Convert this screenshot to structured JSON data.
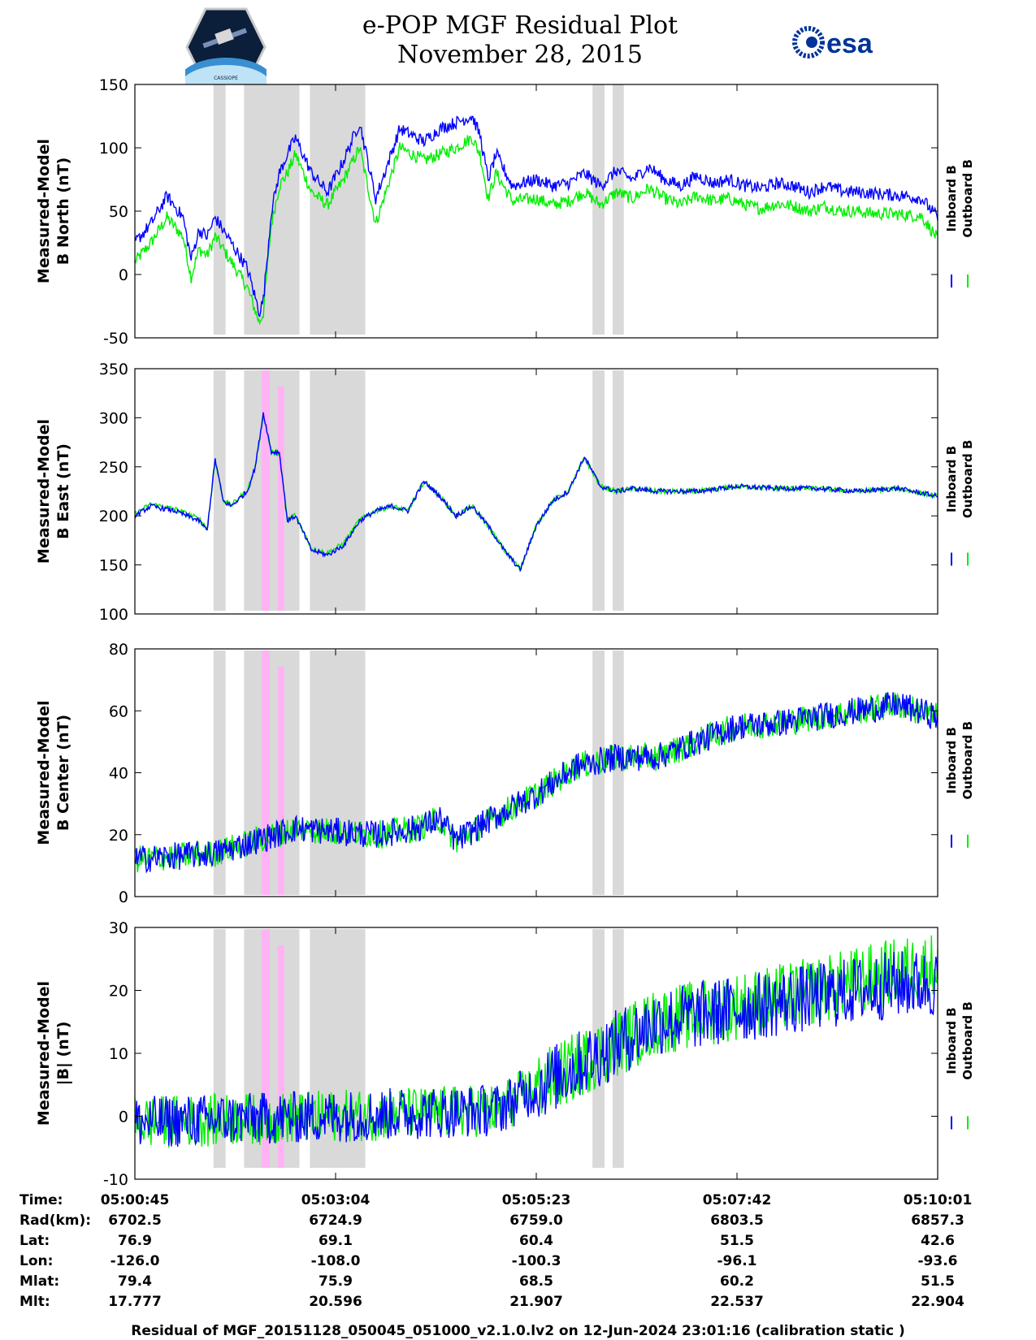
{
  "title": {
    "line1": "e-POP MGF Residual Plot",
    "line2": "November 28, 2015"
  },
  "logos": {
    "left": {
      "name": "cassiope-mission-patch",
      "caption": "CASSIOPE"
    },
    "right": {
      "name": "esa-logo",
      "text": "esa",
      "color": "#003399"
    }
  },
  "colors": {
    "inboard": "#0000ff",
    "outboard": "#00ee00",
    "gray_band": "#d9d9d9",
    "pink_band": "#ffb3f5"
  },
  "chart_data": [
    {
      "type": "line",
      "ylabel_line1": "Measured-Model",
      "ylabel_line2": "B North (nT)",
      "ylim": [
        -50,
        150
      ],
      "yticks": [
        -50,
        0,
        50,
        100,
        150
      ],
      "legend": [
        "Inboard B",
        "Outboard B"
      ],
      "series": [
        {
          "name": "Inboard B",
          "color": "#0000ff",
          "x": [
            0,
            0.02,
            0.04,
            0.06,
            0.07,
            0.08,
            0.09,
            0.1,
            0.12,
            0.14,
            0.155,
            0.16,
            0.17,
            0.18,
            0.19,
            0.2,
            0.22,
            0.24,
            0.26,
            0.28,
            0.3,
            0.33,
            0.36,
            0.38,
            0.4,
            0.42,
            0.43,
            0.44,
            0.45,
            0.47,
            0.5,
            0.52,
            0.54,
            0.56,
            0.58,
            0.6,
            0.62,
            0.64,
            0.66,
            0.68,
            0.7,
            0.72,
            0.74,
            0.76,
            0.78,
            0.8,
            0.82,
            0.84,
            0.86,
            0.88,
            0.9,
            0.92,
            0.94,
            0.96,
            0.98,
            1.0
          ],
          "values": [
            25,
            40,
            62,
            45,
            12,
            35,
            30,
            45,
            25,
            5,
            -30,
            -20,
            50,
            80,
            95,
            108,
            80,
            65,
            90,
            120,
            60,
            115,
            105,
            115,
            120,
            125,
            110,
            75,
            95,
            70,
            75,
            70,
            72,
            80,
            70,
            82,
            75,
            85,
            75,
            70,
            78,
            72,
            75,
            70,
            68,
            72,
            70,
            65,
            70,
            66,
            65,
            64,
            63,
            62,
            60,
            45
          ]
        },
        {
          "name": "Outboard B",
          "color": "#00ee00",
          "x": [
            0,
            0.02,
            0.04,
            0.06,
            0.07,
            0.08,
            0.09,
            0.1,
            0.12,
            0.14,
            0.155,
            0.16,
            0.17,
            0.18,
            0.19,
            0.2,
            0.22,
            0.24,
            0.26,
            0.28,
            0.3,
            0.33,
            0.36,
            0.38,
            0.4,
            0.42,
            0.43,
            0.44,
            0.45,
            0.47,
            0.5,
            0.52,
            0.54,
            0.56,
            0.58,
            0.6,
            0.62,
            0.64,
            0.66,
            0.68,
            0.7,
            0.72,
            0.74,
            0.76,
            0.78,
            0.8,
            0.82,
            0.84,
            0.86,
            0.88,
            0.9,
            0.92,
            0.94,
            0.96,
            0.98,
            1.0
          ],
          "values": [
            10,
            25,
            45,
            30,
            -2,
            20,
            15,
            30,
            10,
            -10,
            -38,
            -30,
            40,
            70,
            80,
            95,
            65,
            55,
            75,
            100,
            40,
            100,
            90,
            95,
            100,
            108,
            95,
            60,
            80,
            58,
            60,
            55,
            58,
            65,
            55,
            65,
            60,
            68,
            60,
            55,
            62,
            58,
            60,
            55,
            52,
            56,
            54,
            50,
            54,
            50,
            50,
            48,
            48,
            47,
            46,
            28
          ]
        }
      ]
    },
    {
      "type": "line",
      "ylabel_line1": "Measured-Model",
      "ylabel_line2": "B East (nT)",
      "ylim": [
        100,
        350
      ],
      "yticks": [
        100,
        150,
        200,
        250,
        300,
        350
      ],
      "legend": [
        "Inboard B",
        "Outboard B"
      ],
      "series": [
        {
          "name": "Inboard B",
          "color": "#0000ff",
          "x": [
            0,
            0.02,
            0.05,
            0.08,
            0.09,
            0.1,
            0.11,
            0.12,
            0.14,
            0.15,
            0.16,
            0.17,
            0.18,
            0.19,
            0.2,
            0.22,
            0.24,
            0.26,
            0.28,
            0.3,
            0.32,
            0.34,
            0.36,
            0.38,
            0.4,
            0.42,
            0.44,
            0.46,
            0.48,
            0.5,
            0.52,
            0.54,
            0.56,
            0.58,
            0.6,
            0.62,
            0.65,
            0.7,
            0.75,
            0.8,
            0.85,
            0.9,
            0.95,
            1.0
          ],
          "values": [
            200,
            210,
            205,
            195,
            185,
            258,
            215,
            210,
            225,
            250,
            305,
            265,
            265,
            195,
            200,
            165,
            160,
            170,
            195,
            205,
            210,
            205,
            235,
            220,
            200,
            210,
            190,
            165,
            145,
            190,
            215,
            225,
            260,
            230,
            225,
            228,
            225,
            225,
            230,
            228,
            228,
            225,
            228,
            220
          ]
        },
        {
          "name": "Outboard B",
          "color": "#00ee00",
          "x": [
            0,
            0.02,
            0.05,
            0.08,
            0.09,
            0.1,
            0.11,
            0.12,
            0.14,
            0.15,
            0.16,
            0.17,
            0.18,
            0.19,
            0.2,
            0.22,
            0.24,
            0.26,
            0.28,
            0.3,
            0.32,
            0.34,
            0.36,
            0.38,
            0.4,
            0.42,
            0.44,
            0.46,
            0.48,
            0.5,
            0.52,
            0.54,
            0.56,
            0.58,
            0.6,
            0.62,
            0.65,
            0.7,
            0.75,
            0.8,
            0.85,
            0.9,
            0.95,
            1.0
          ],
          "values": [
            202,
            212,
            207,
            197,
            187,
            256,
            216,
            211,
            226,
            250,
            303,
            265,
            264,
            196,
            201,
            167,
            162,
            172,
            196,
            205,
            210,
            205,
            235,
            220,
            200,
            210,
            190,
            165,
            146,
            190,
            215,
            225,
            259,
            230,
            225,
            228,
            225,
            225,
            230,
            228,
            228,
            225,
            228,
            220
          ]
        }
      ]
    },
    {
      "type": "line",
      "ylabel_line1": "Measured-Model",
      "ylabel_line2": "B Center (nT)",
      "ylim": [
        0,
        80
      ],
      "yticks": [
        0,
        20,
        40,
        60,
        80
      ],
      "legend": [
        "Inboard B",
        "Outboard B"
      ],
      "series": [
        {
          "name": "Inboard B",
          "color": "#0000ff",
          "x": [
            0,
            0.1,
            0.15,
            0.2,
            0.3,
            0.35,
            0.38,
            0.4,
            0.45,
            0.5,
            0.55,
            0.6,
            0.65,
            0.7,
            0.75,
            0.8,
            0.85,
            0.9,
            0.95,
            1.0
          ],
          "values": [
            12,
            14,
            18,
            22,
            20,
            22,
            25,
            18,
            26,
            33,
            42,
            45,
            45,
            50,
            55,
            56,
            58,
            60,
            62,
            58
          ]
        },
        {
          "name": "Outboard B",
          "color": "#00ee00",
          "x": [
            0,
            0.1,
            0.15,
            0.2,
            0.3,
            0.35,
            0.38,
            0.4,
            0.45,
            0.5,
            0.55,
            0.6,
            0.65,
            0.7,
            0.75,
            0.8,
            0.85,
            0.9,
            0.95,
            1.0
          ],
          "values": [
            12,
            14,
            18,
            22,
            20,
            22,
            25,
            18,
            26,
            33,
            42,
            45,
            45,
            50,
            55,
            56,
            58,
            60,
            62,
            58
          ]
        }
      ]
    },
    {
      "type": "line",
      "ylabel_line1": "Measured-Model",
      "ylabel_line2": "|B| (nT)",
      "ylim": [
        -10,
        30
      ],
      "yticks": [
        -10,
        0,
        10,
        20,
        30
      ],
      "legend": [
        "Inboard B",
        "Outboard B"
      ],
      "series": [
        {
          "name": "Inboard B",
          "color": "#0000ff",
          "x": [
            0,
            0.25,
            0.45,
            0.55,
            0.65,
            0.75,
            0.85,
            0.95,
            1.0
          ],
          "values": [
            -1,
            0,
            1,
            8,
            15,
            17,
            19,
            21,
            21
          ]
        },
        {
          "name": "Outboard B",
          "color": "#00ee00",
          "x": [
            0,
            0.25,
            0.45,
            0.55,
            0.65,
            0.75,
            0.85,
            0.95,
            1.0
          ],
          "values": [
            -1,
            0,
            1,
            8,
            15,
            17.5,
            20,
            23,
            24
          ]
        }
      ]
    }
  ],
  "shaded_regions": {
    "gray": [
      [
        0.098,
        0.113
      ],
      [
        0.136,
        0.205
      ],
      [
        0.218,
        0.287
      ],
      [
        0.57,
        0.585
      ],
      [
        0.595,
        0.609
      ]
    ],
    "pink": [
      [
        0.158,
        0.168
      ],
      [
        0.178,
        0.186
      ]
    ]
  },
  "info_table": {
    "labels": [
      "Time:",
      "Rad(km):",
      "Lat:",
      "Lon:",
      "Mlat:",
      "Mlt:"
    ],
    "columns": [
      [
        "05:00:45",
        "6702.5",
        "76.9",
        "-126.0",
        "79.4",
        "17.777"
      ],
      [
        "05:03:04",
        "6724.9",
        "69.1",
        "-108.0",
        "75.9",
        "20.596"
      ],
      [
        "05:05:23",
        "6759.0",
        "60.4",
        "-100.3",
        "68.5",
        "21.907"
      ],
      [
        "05:07:42",
        "6803.5",
        "51.5",
        "-96.1",
        "60.2",
        "22.537"
      ],
      [
        "05:10:01",
        "6857.3",
        "42.6",
        "-93.6",
        "51.5",
        "22.904"
      ]
    ]
  },
  "footer": "Residual of MGF_20151128_050045_051000_v2.1.0.lv2 on 12-Jun-2024 23:01:16 (calibration static )"
}
